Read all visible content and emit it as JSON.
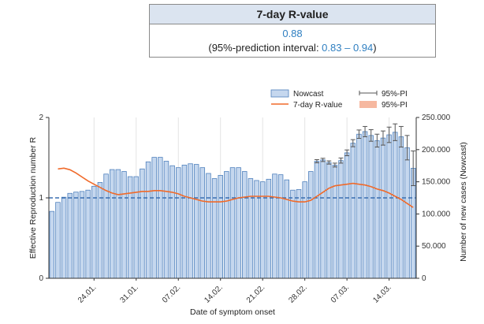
{
  "rvalue_box": {
    "title": "7-day R-value",
    "value": "0.88",
    "pi_prefix": "(95%-prediction interval: ",
    "pi_low": "0.83",
    "pi_sep": " – ",
    "pi_high": "0.94",
    "pi_suffix": ")"
  },
  "chart_data": {
    "type": "bar",
    "xlabel": "Date of symptom onset",
    "ylabel_left": "Effective Reproduction number R",
    "ylabel_right": "Number of new cases (Nowcast)",
    "ylim_left": [
      0,
      2
    ],
    "yticks_left": [
      "0",
      "1",
      "2"
    ],
    "ylim_right": [
      0,
      250000
    ],
    "yticks_right": [
      "0",
      "50.000",
      "100.000",
      "150.000",
      "200.000",
      "250.000"
    ],
    "x_tick_labels": [
      "24.01.",
      "31.01.",
      "07.02.",
      "14.02.",
      "21.02.",
      "28.02.",
      "07.03.",
      "14.03."
    ],
    "x_tick_indices": [
      7,
      14,
      21,
      28,
      35,
      42,
      49,
      56
    ],
    "reference_line_r": 1,
    "grid": true,
    "legend": {
      "position": "top-right",
      "items": [
        {
          "label": "Nowcast",
          "type": "bar",
          "color": "#c5d7ee"
        },
        {
          "label": "7-day R-value",
          "type": "line",
          "color": "#f06a2a"
        },
        {
          "label": "95%-PI",
          "type": "errorbar",
          "color": "#555555"
        },
        {
          "label": "95%-PI",
          "type": "band",
          "color": "#f6b8a0"
        }
      ]
    },
    "series": [
      {
        "name": "Nowcast",
        "axis": "right",
        "values": [
          104000,
          118000,
          126000,
          132000,
          134000,
          135000,
          137000,
          143000,
          149000,
          162000,
          169000,
          169000,
          166000,
          158000,
          158000,
          170000,
          181000,
          188000,
          188000,
          182000,
          175000,
          172000,
          176000,
          178000,
          177000,
          172000,
          163000,
          155000,
          160000,
          166000,
          172000,
          172000,
          166000,
          155000,
          152000,
          150000,
          154000,
          162000,
          161000,
          153000,
          137000,
          138000,
          150000,
          166000,
          182000,
          184000,
          180000,
          176000,
          183000,
          195000,
          210000,
          224000,
          228000,
          222000,
          214000,
          218000,
          223000,
          227000,
          220000,
          203000,
          171000
        ],
        "pi_half": [
          0,
          0,
          0,
          0,
          0,
          0,
          0,
          0,
          0,
          0,
          0,
          0,
          0,
          0,
          0,
          0,
          0,
          0,
          0,
          0,
          0,
          0,
          0,
          0,
          0,
          0,
          0,
          0,
          0,
          0,
          0,
          0,
          0,
          0,
          0,
          0,
          0,
          0,
          0,
          0,
          0,
          0,
          0,
          0,
          2500,
          2500,
          2500,
          3000,
          4000,
          4500,
          5500,
          6500,
          8000,
          9000,
          10000,
          11000,
          12000,
          13000,
          16000,
          19000,
          27000
        ]
      },
      {
        "name": "7-day R-value",
        "axis": "left",
        "x_start_index": 1,
        "values": [
          1.36,
          1.37,
          1.35,
          1.31,
          1.26,
          1.21,
          1.17,
          1.13,
          1.09,
          1.06,
          1.04,
          1.05,
          1.06,
          1.07,
          1.08,
          1.08,
          1.09,
          1.09,
          1.08,
          1.07,
          1.05,
          1.02,
          1.0,
          0.98,
          0.96,
          0.95,
          0.95,
          0.95,
          0.96,
          0.98,
          1.0,
          1.01,
          1.02,
          1.02,
          1.02,
          1.02,
          1.01,
          1.0,
          0.98,
          0.96,
          0.95,
          0.95,
          0.97,
          1.02,
          1.07,
          1.12,
          1.15,
          1.16,
          1.17,
          1.18,
          1.17,
          1.16,
          1.14,
          1.11,
          1.09,
          1.06,
          1.02,
          0.98,
          0.93,
          0.88
        ]
      }
    ]
  }
}
